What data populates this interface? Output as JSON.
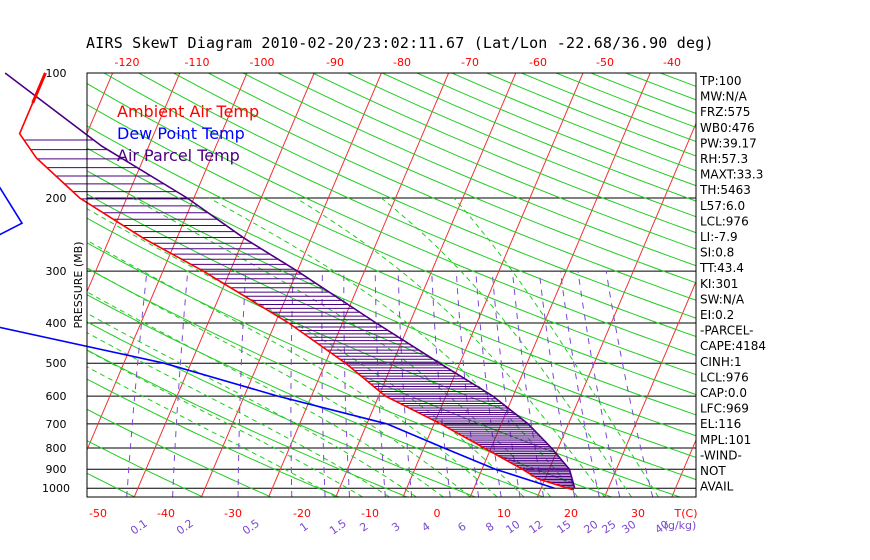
{
  "chart_data": {
    "type": "skew-t",
    "title": "AIRS SkewT Diagram 2010-02-20/23:02:11.67 (Lat/Lon -22.68/36.90 deg)",
    "ylabel": "PRESSURE (MB)",
    "ylim": [
      1050,
      100
    ],
    "pressure_ticks": [
      100,
      200,
      300,
      400,
      500,
      600,
      700,
      800,
      900,
      1000
    ],
    "top_temp_ticks": [
      -120,
      -110,
      -100,
      -90,
      -80,
      -70,
      -60,
      -50,
      -40
    ],
    "bottom_temp_ticks": [
      -50,
      -40,
      -30,
      -20,
      -10,
      0,
      10,
      20,
      30
    ],
    "bottom_temp_unit": "T(C)",
    "mixing_ratio_ticks": [
      "0.1",
      "0.2",
      "0.5",
      "1",
      "1.5",
      "2",
      "3",
      "4",
      "6",
      "8",
      "10",
      "12",
      "15",
      "20",
      "25",
      "30",
      "40"
    ],
    "mixing_ratio_unit": "(g/kg)",
    "legend": [
      {
        "label": "Ambient Air Temp",
        "color": "#ff0000"
      },
      {
        "label": "Dew Point Temp",
        "color": "#0000ff"
      },
      {
        "label": "Air Parcel Temp",
        "color": "#4b0082"
      }
    ],
    "series": [
      {
        "name": "Ambient Air Temp",
        "color": "#ff0000",
        "points": [
          [
            100,
            -80
          ],
          [
            140,
            -80
          ],
          [
            160,
            -76
          ],
          [
            200,
            -67
          ],
          [
            250,
            -55
          ],
          [
            300,
            -44
          ],
          [
            400,
            -28
          ],
          [
            500,
            -17
          ],
          [
            600,
            -9
          ],
          [
            700,
            1
          ],
          [
            800,
            9
          ],
          [
            900,
            16
          ],
          [
            950,
            19
          ],
          [
            1000,
            24
          ],
          [
            1010,
            25
          ]
        ]
      },
      {
        "name": "Dew Point Temp",
        "color": "#0000ff",
        "points": [
          [
            100,
            -87
          ],
          [
            150,
            -86
          ],
          [
            230,
            -74
          ],
          [
            280,
            -82
          ],
          [
            300,
            -84
          ],
          [
            400,
            -74
          ],
          [
            500,
            -44
          ],
          [
            600,
            -25
          ],
          [
            700,
            -7
          ],
          [
            800,
            3
          ],
          [
            900,
            12
          ],
          [
            1000,
            22
          ]
        ]
      },
      {
        "name": "Air Parcel Temp",
        "color": "#4b0082",
        "points": [
          [
            100,
            -86
          ],
          [
            150,
            -67
          ],
          [
            200,
            -51
          ],
          [
            250,
            -40
          ],
          [
            300,
            -30
          ],
          [
            400,
            -15
          ],
          [
            500,
            -3
          ],
          [
            600,
            7
          ],
          [
            700,
            14
          ],
          [
            800,
            19
          ],
          [
            900,
            23
          ],
          [
            1000,
            25
          ]
        ]
      }
    ],
    "grid": true
  },
  "indices": [
    "TP:100",
    "MW:N/A",
    "FRZ:575",
    "WB0:476",
    "PW:39.17",
    "RH:57.3",
    "MAXT:33.3",
    "TH:5463",
    "L57:6.0",
    "LCL:976",
    "LI:-7.9",
    "SI:0.8",
    "TT:43.4",
    "KI:301",
    "SW:N/A",
    "EI:0.2",
    "-PARCEL-",
    "CAPE:4184",
    "CINH:1",
    "LCL:976",
    "CAP:0.0",
    "LFC:969",
    "EL:116",
    "MPL:101",
    "-WIND-",
    "NOT",
    "AVAIL"
  ]
}
